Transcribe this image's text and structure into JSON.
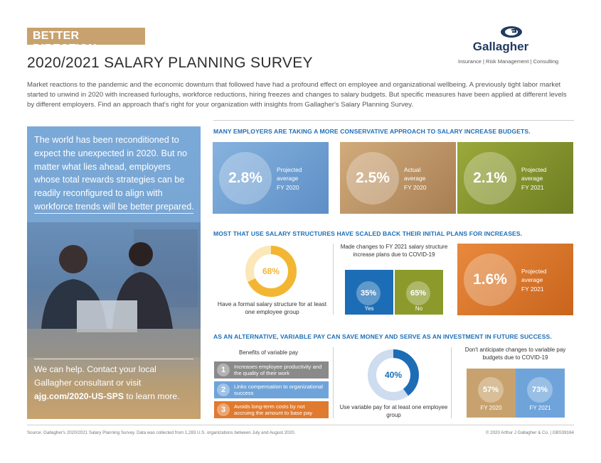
{
  "header": {
    "tag": "BETTER DIRECTION",
    "title": "2020/2021 SALARY PLANNING SURVEY",
    "logo_name": "Gallagher",
    "logo_sub": "Insurance | Risk Management | Consulting",
    "intro": "Market reactions to the pandemic and the economic downturn that followed have had a profound effect on employee and organizational wellbeing. A previously tight labor market started to unwind in 2020 with increased furloughs, workforce reductions, hiring freezes and changes to salary budgets. But specific measures have been applied at different levels by different employers. Find an approach that's right for your organization with insights from Gallagher's Salary Planning Survey."
  },
  "left_panel": {
    "quote": "The world has been reconditioned to expect the unexpected in 2020. But no matter what lies ahead, employers whose total rewards strategies can be readily reconfigured to align with workforce trends will be better prepared.",
    "cta_prefix": "We can help. Contact your local Gallagher consultant or visit ",
    "cta_url": "ajg.com/2020-US-SPS",
    "cta_suffix": " to learn more."
  },
  "section1": {
    "heading": "MANY EMPLOYERS ARE TAKING A MORE CONSERVATIVE APPROACH TO SALARY INCREASE BUDGETS.",
    "tiles": [
      {
        "value": "2.8%",
        "l1": "Projected",
        "l2": "average",
        "l3": "FY 2020",
        "color": "#6f9fd2"
      },
      {
        "value": "2.5%",
        "l1": "Actual",
        "l2": "average",
        "l3": "FY 2020",
        "color": "#c49a66"
      },
      {
        "value": "2.1%",
        "l1": "Projected",
        "l2": "average",
        "l3": "FY 2021",
        "color": "#8a9a2e"
      }
    ]
  },
  "section2": {
    "heading": "MOST THAT USE SALARY STRUCTURES HAVE SCALED BACK THEIR INITIAL PLANS FOR INCREASES.",
    "donut_value": "68%",
    "donut_fraction": 0.68,
    "donut_caption": "Have a formal salary structure for at least one employee group",
    "mid_caption": "Made changes to FY 2021 salary structure increase plans due to COVID-19",
    "yes_value": "35%",
    "yes_label": "Yes",
    "no_value": "65%",
    "no_label": "No",
    "tile_value": "1.6%",
    "tile_l1": "Projected",
    "tile_l2": "average",
    "tile_l3": "FY 2021",
    "colors": {
      "donut": "#f2b632",
      "yes": "#1c6db5",
      "no": "#8b9a2a",
      "tile": "#e07a2e"
    }
  },
  "section3": {
    "heading": "AS AN ALTERNATIVE, VARIABLE PAY CAN SAVE MONEY AND SERVE AS AN INVESTMENT IN FUTURE SUCCESS.",
    "benefits_heading": "Benefits of variable pay",
    "benefits": [
      {
        "num": "1",
        "text": "Increases employee productivity and the quality of their work",
        "color": "#8a8a8a"
      },
      {
        "num": "2",
        "text": "Links compensation to organizational success",
        "color": "#6fa4da"
      },
      {
        "num": "3",
        "text": "Avoids long-term costs by not accruing the amount to base pay",
        "color": "#e07a2e"
      }
    ],
    "donut_value": "40%",
    "donut_fraction": 0.4,
    "donut_caption": "Use variable pay for at least one employee group",
    "right_caption": "Don't anticipate changes to variable pay budgets due to COVID-19",
    "fy2020_value": "57%",
    "fy2020_label": "FY 2020",
    "fy2021_value": "73%",
    "fy2021_label": "FY 2021",
    "colors": {
      "donut": "#1c6db5",
      "fy2020": "#c8a26e",
      "fy2021": "#6fa4da"
    }
  },
  "footer": {
    "source": "Source: Gallagher's 2020/2021 Salary Planning Survey. Data was collected from 1,283 U.S. organizations between July and August 2020.",
    "copyright": "© 2020 Arthur J Gallagher & Co. | GBS39164"
  }
}
